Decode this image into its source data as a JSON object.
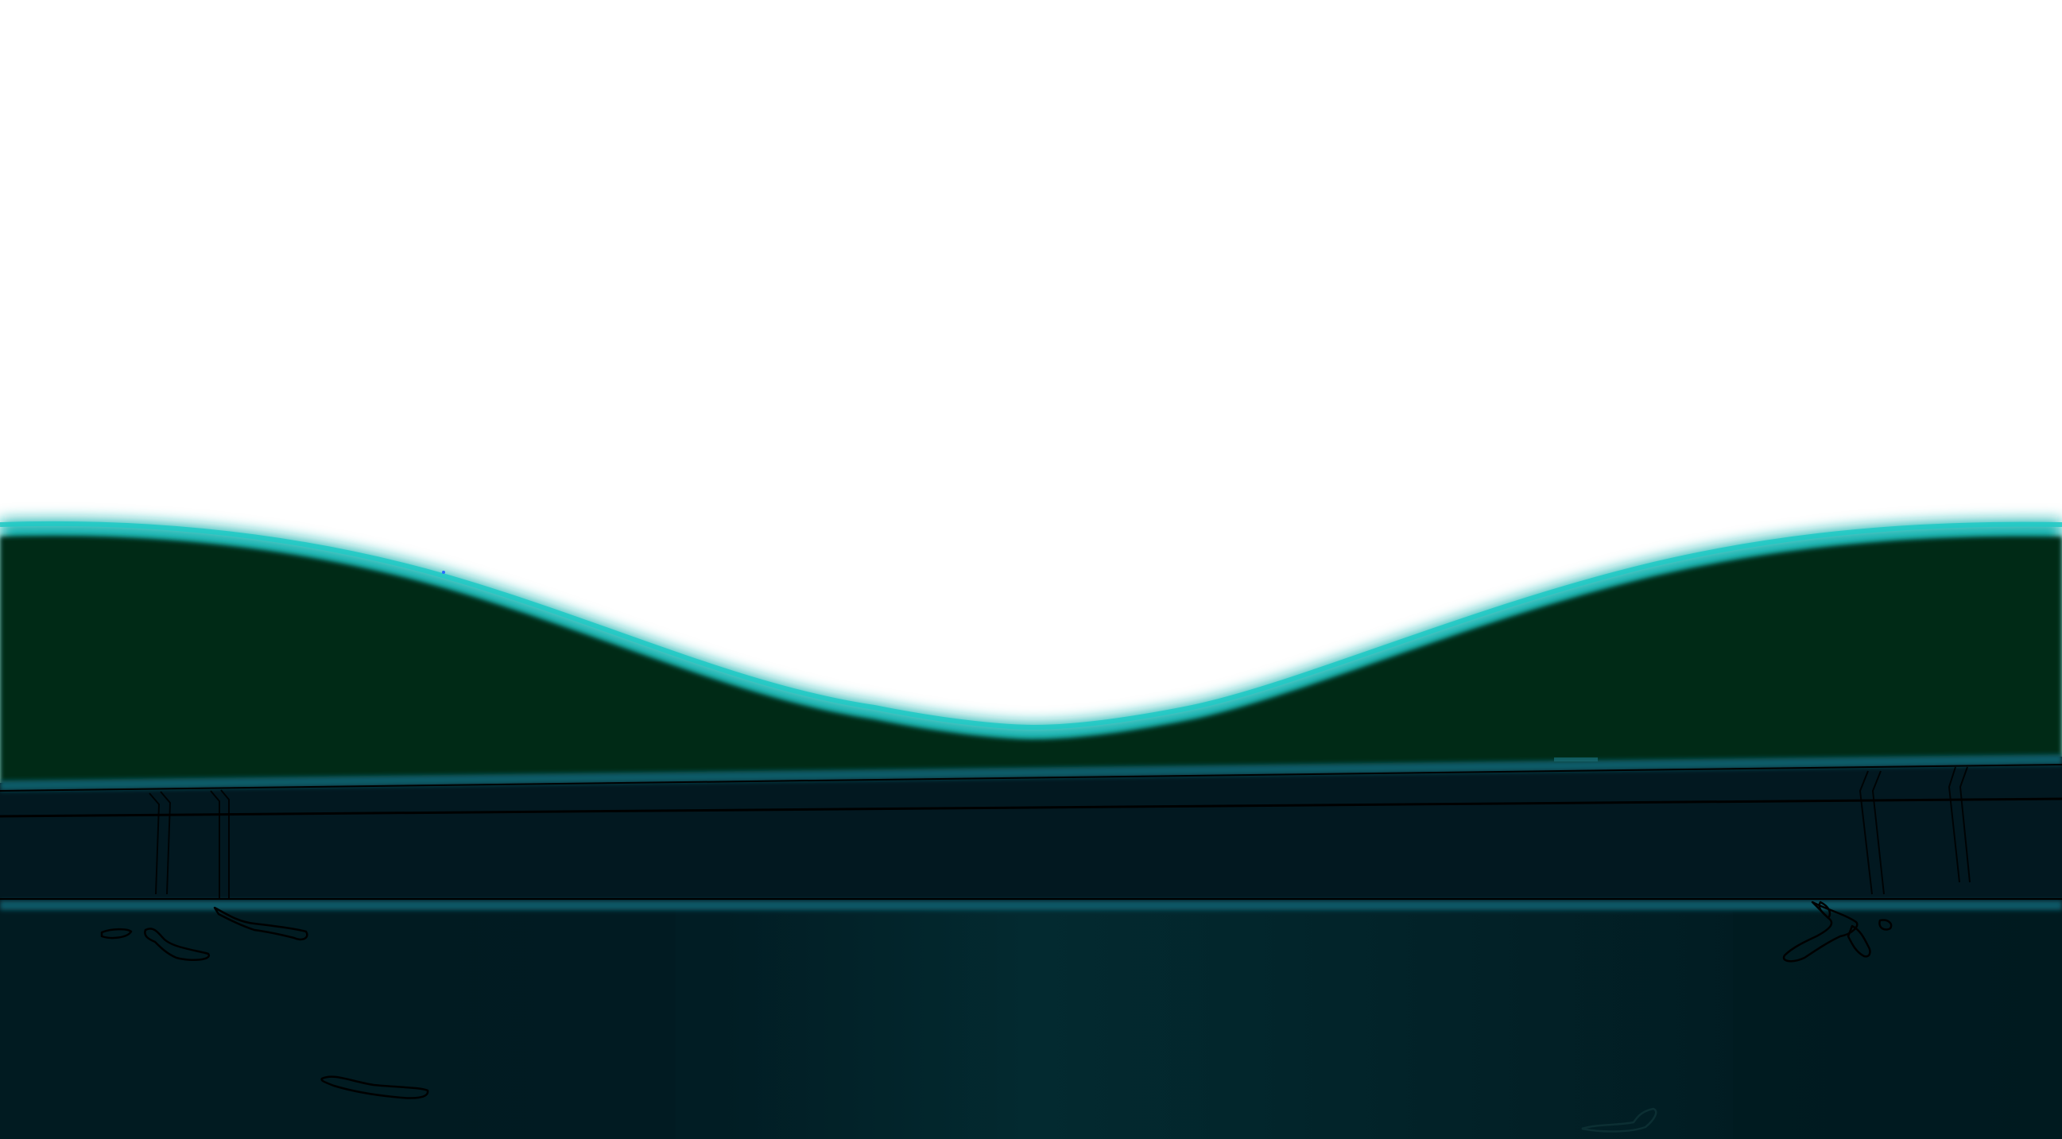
{
  "scene": {
    "colors": {
      "sky": "#ffffff",
      "hill_fill": "#032a17",
      "hill_glow": "#14b3b0",
      "hill_outline": "#0e8f8c",
      "rail_top_edge": "#0c5c68",
      "rail_fill": "#021820",
      "rail_line": "#000000",
      "lower_strip_edge": "#0b5966",
      "ground_fill": "#011c22",
      "ground_fill_light": "#032a30",
      "crack_stroke": "#000000",
      "scratch_stroke": "#0c2f33"
    },
    "icons": [
      "hill-silhouette",
      "rail-track",
      "ground-crack",
      "support-strut"
    ]
  }
}
